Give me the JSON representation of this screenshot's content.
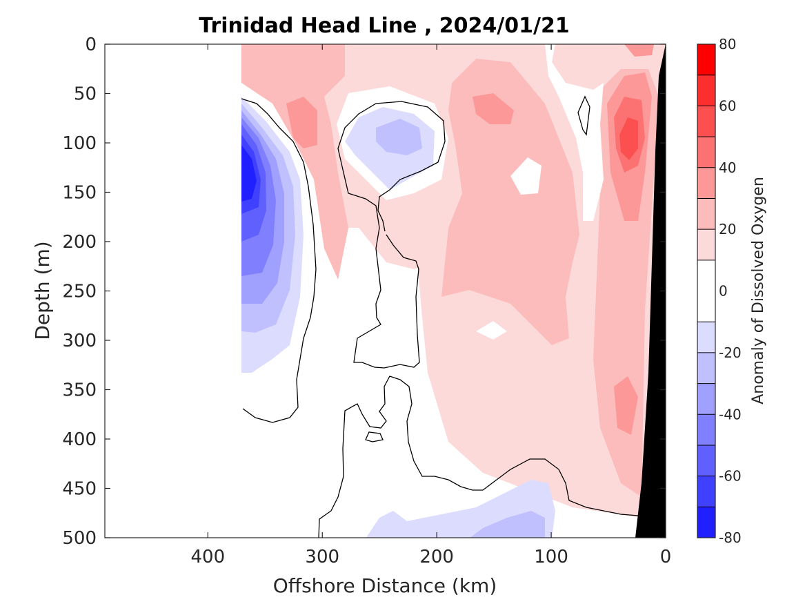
{
  "chart_data": {
    "type": "contour",
    "title": "Trinidad Head Line , 2024/01/21",
    "xlabel": "Offshore Distance (km)",
    "ylabel": "Depth (m)",
    "xlim": [
      490,
      0
    ],
    "ylim": [
      0,
      500
    ],
    "x_reversed": true,
    "y_reversed": true,
    "xticks": [
      400,
      300,
      200,
      100,
      0
    ],
    "yticks": [
      0,
      50,
      100,
      150,
      200,
      250,
      300,
      350,
      400,
      450,
      500
    ],
    "colorbar": {
      "label": "Anomaly of Dissolved Oxygen",
      "range": [
        -80,
        80
      ],
      "ticks": [
        80,
        60,
        40,
        20,
        0,
        -20,
        -40,
        -60,
        -80
      ],
      "levels": [
        -80,
        -70,
        -60,
        -50,
        -40,
        -30,
        -20,
        -10,
        10,
        20,
        30,
        40,
        50,
        60,
        70,
        80
      ],
      "colors": {
        "neg": [
          "#0000ff",
          "#2020ff",
          "#4040ff",
          "#6060ff",
          "#8080ff",
          "#a0a0ff",
          "#c0c0ff",
          "#dcdcff"
        ],
        "pos": [
          "#fcdada",
          "#fcbcbc",
          "#fc9898",
          "#fc7272",
          "#fc5050",
          "#fc2e2e",
          "#ff0000"
        ]
      }
    },
    "features": [
      {
        "name": "Strong low-oxygen core",
        "x": 360,
        "y": 135,
        "anomaly": -70
      },
      {
        "name": "Deep low-oxygen patch",
        "x": 130,
        "y": 490,
        "anomaly": -30
      },
      {
        "name": "Subsurface low-oxygen eddy",
        "x": 240,
        "y": 100,
        "anomaly": -25
      },
      {
        "name": "Nearshore high-oxygen core",
        "x": 30,
        "y": 100,
        "anomaly": 60
      },
      {
        "name": "Offshore high-oxygen patch",
        "x": 315,
        "y": 75,
        "anomaly": 35
      }
    ],
    "zero_contour": true,
    "bathymetry_color": "#000000"
  }
}
